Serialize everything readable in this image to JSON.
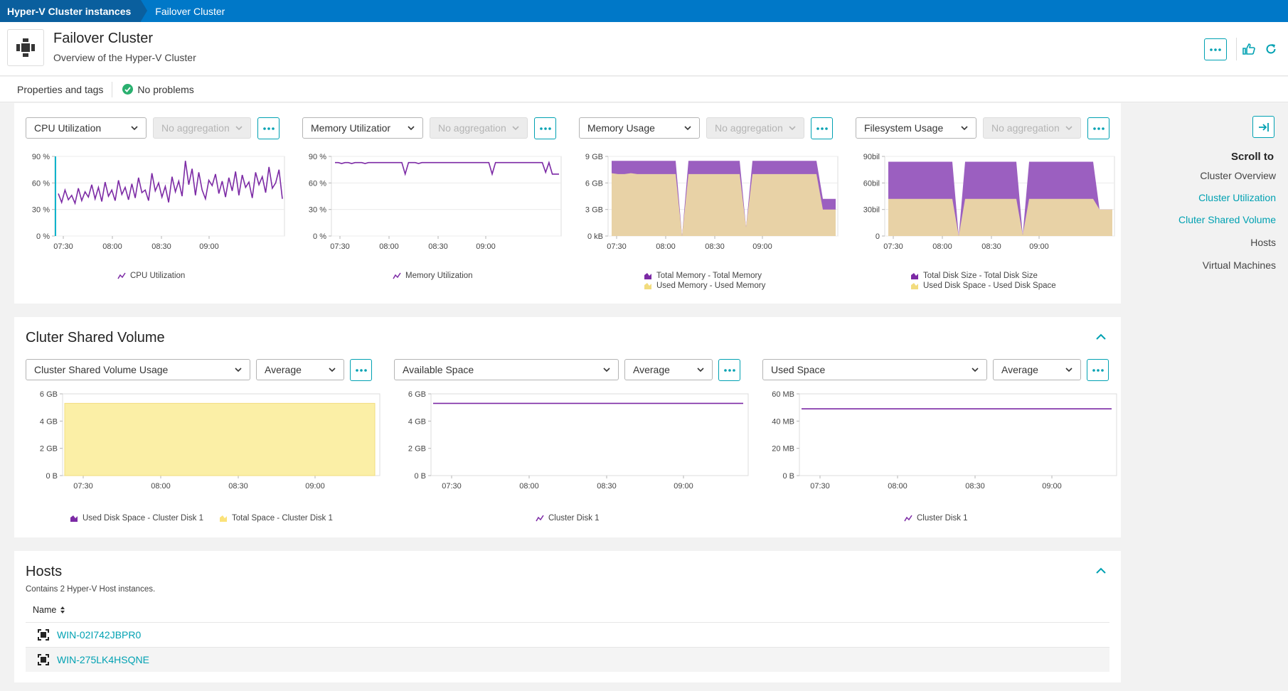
{
  "breadcrumb": {
    "items": [
      "Hyper-V Cluster instances",
      "Failover Cluster"
    ]
  },
  "header": {
    "title": "Failover Cluster",
    "subtitle": "Overview of the Hyper-V Cluster",
    "more_label": "···"
  },
  "properties": {
    "link": "Properties and tags",
    "status": "No problems"
  },
  "colors": {
    "accent": "#00a1b2",
    "breadcrumb_blue": "#0078c8",
    "purple": "#9b5fc0",
    "purple_line": "#7c2aa5",
    "tan": "#e8d2a6",
    "yellow": "#fbefa6",
    "ok_green": "#2ab06f"
  },
  "cluster_utilization": {
    "charts": [
      {
        "metric": "CPU Utilization",
        "aggregation": "No aggregation",
        "legend": [
          "CPU Utilization"
        ]
      },
      {
        "metric": "Memory Utilizatior",
        "aggregation": "No aggregation",
        "legend": [
          "Memory Utilization"
        ]
      },
      {
        "metric": "Memory Usage",
        "aggregation": "No aggregation",
        "legend": [
          "Total Memory - Total Memory",
          "Used Memory - Used Memory"
        ]
      },
      {
        "metric": "Filesystem Usage",
        "aggregation": "No aggregation",
        "legend": [
          "Total Disk Size - Total Disk Size",
          "Used Disk Space - Used Disk Space"
        ]
      }
    ]
  },
  "shared_volume": {
    "title": "Cluter Shared Volume",
    "charts": [
      {
        "metric": "Cluster Shared Volume Usage",
        "aggregation": "Average",
        "legend": [
          "Used Disk Space - Cluster Disk 1",
          "Total Space - Cluster Disk 1"
        ]
      },
      {
        "metric": "Available Space",
        "aggregation": "Average",
        "legend": [
          "Cluster Disk 1"
        ]
      },
      {
        "metric": "Used Space",
        "aggregation": "Average",
        "legend": [
          "Cluster Disk 1"
        ]
      }
    ]
  },
  "hosts": {
    "title": "Hosts",
    "subtitle": "Contains 2 Hyper-V Host instances.",
    "column": "Name",
    "rows": [
      "WIN-02I742JBPR0",
      "WIN-275LK4HSQNE"
    ]
  },
  "right_nav": {
    "title": "Scroll to",
    "items": [
      "Cluster Overview",
      "Cluster Utilization",
      "Cluter Shared Volume",
      "Hosts",
      "Virtual Machines"
    ],
    "active": [
      "Cluster Utilization",
      "Cluter Shared Volume"
    ]
  },
  "chart_data": [
    {
      "type": "line",
      "title": "CPU Utilization",
      "x_ticks": [
        "07:30",
        "08:00",
        "08:30",
        "09:00"
      ],
      "y_ticks": [
        "90 %",
        "60 %",
        "30 %",
        "0 %"
      ],
      "ylim": [
        0,
        90
      ],
      "series": [
        {
          "name": "CPU Utilization",
          "values": [
            48,
            38,
            52,
            41,
            46,
            37,
            54,
            40,
            50,
            44,
            58,
            42,
            55,
            39,
            61,
            45,
            52,
            40,
            63,
            47,
            55,
            41,
            59,
            43,
            66,
            49,
            52,
            40,
            71,
            51,
            60,
            44,
            56,
            38,
            67,
            50,
            62,
            45,
            85,
            58,
            76,
            46,
            72,
            52,
            42,
            63,
            57,
            70,
            48,
            62,
            44,
            66,
            51,
            73,
            46,
            69,
            55,
            61,
            43,
            72,
            58,
            67,
            49,
            78,
            54,
            60,
            75,
            42
          ]
        }
      ],
      "grid": true
    },
    {
      "type": "line",
      "title": "Memory Utilization",
      "x_ticks": [
        "07:30",
        "08:00",
        "08:30",
        "09:00"
      ],
      "y_ticks": [
        "90 %",
        "60 %",
        "30 %",
        "0 %"
      ],
      "ylim": [
        0,
        90
      ],
      "series": [
        {
          "name": "Memory Utilization",
          "values": [
            83,
            83,
            82,
            83,
            83,
            82,
            83,
            83,
            83,
            82,
            83,
            83,
            83,
            83,
            83,
            83,
            83,
            83,
            83,
            83,
            83,
            70,
            83,
            83,
            83,
            82,
            83,
            83,
            83,
            83,
            83,
            83,
            83,
            83,
            83,
            83,
            83,
            83,
            83,
            83,
            83,
            83,
            83,
            83,
            83,
            83,
            83,
            70,
            83,
            83,
            83,
            83,
            83,
            83,
            83,
            83,
            83,
            83,
            83,
            83,
            83,
            83,
            83,
            72,
            83,
            70,
            70,
            70
          ]
        }
      ],
      "grid": true
    },
    {
      "type": "area",
      "title": "Memory Usage",
      "x_ticks": [
        "07:30",
        "08:00",
        "08:30",
        "09:00"
      ],
      "y_ticks": [
        "9 GB",
        "6 GB",
        "3 GB",
        "0 kB"
      ],
      "ylim": [
        0,
        9
      ],
      "series": [
        {
          "name": "Total Memory - Total Memory",
          "values": [
            8.5,
            8.5,
            8.5,
            8.5,
            8.5,
            8.5,
            8.5,
            8.5,
            8.5,
            8.5,
            8.5,
            0,
            8.5,
            8.5,
            8.5,
            8.5,
            8.5,
            8.5,
            8.5,
            8.5,
            8.5,
            1,
            8.5,
            8.5,
            8.5,
            8.5,
            8.5,
            8.5,
            8.5,
            8.5,
            8.5,
            8.5,
            8.5,
            4.2,
            4.2,
            4.2
          ]
        },
        {
          "name": "Used Memory - Used Memory",
          "values": [
            7.1,
            7.0,
            7.0,
            7.1,
            7.0,
            7.0,
            7.0,
            7.0,
            7.0,
            7.0,
            7.0,
            0,
            7.0,
            7.0,
            7.0,
            7.0,
            7.0,
            7.0,
            7.0,
            7.0,
            7.0,
            1,
            7.0,
            7.0,
            7.0,
            7.0,
            7.0,
            7.0,
            7.0,
            7.0,
            7.0,
            7.0,
            7.0,
            3.0,
            3.0,
            3.0
          ]
        }
      ],
      "grid": true
    },
    {
      "type": "area",
      "title": "Filesystem Usage",
      "x_ticks": [
        "07:30",
        "08:00",
        "08:30",
        "09:00"
      ],
      "y_ticks": [
        "90bil",
        "60bil",
        "30bil",
        "0"
      ],
      "ylim": [
        0,
        90
      ],
      "series": [
        {
          "name": "Total Disk Size - Total Disk Size",
          "values": [
            84,
            84,
            84,
            84,
            84,
            84,
            84,
            84,
            84,
            84,
            84,
            0,
            84,
            84,
            84,
            84,
            84,
            84,
            84,
            84,
            84,
            1,
            84,
            84,
            84,
            84,
            84,
            84,
            84,
            84,
            84,
            84,
            84,
            30,
            30,
            30
          ]
        },
        {
          "name": "Used Disk Space - Used Disk Space",
          "values": [
            42,
            42,
            42,
            42,
            42,
            42,
            42,
            42,
            42,
            42,
            42,
            0,
            42,
            42,
            42,
            42,
            42,
            42,
            42,
            42,
            42,
            1,
            42,
            42,
            42,
            42,
            42,
            42,
            42,
            42,
            42,
            42,
            42,
            30,
            30,
            30
          ]
        }
      ],
      "grid": true
    },
    {
      "type": "area",
      "title": "Cluster Shared Volume Usage",
      "x_ticks": [
        "07:30",
        "08:00",
        "08:30",
        "09:00"
      ],
      "y_ticks": [
        "6 GB",
        "4 GB",
        "2 GB",
        "0 B"
      ],
      "ylim": [
        0,
        6
      ],
      "series": [
        {
          "name": "Used Disk Space - Cluster Disk 1",
          "values": [
            0,
            0
          ]
        },
        {
          "name": "Total Space - Cluster Disk 1",
          "values": [
            5.3,
            5.3
          ]
        }
      ],
      "grid": false
    },
    {
      "type": "line",
      "title": "Available Space",
      "x_ticks": [
        "07:30",
        "08:00",
        "08:30",
        "09:00"
      ],
      "y_ticks": [
        "6 GB",
        "4 GB",
        "2 GB",
        "0 B"
      ],
      "ylim": [
        0,
        6
      ],
      "series": [
        {
          "name": "Cluster Disk 1",
          "values": [
            5.3,
            5.3
          ]
        }
      ],
      "grid": false
    },
    {
      "type": "line",
      "title": "Used Space",
      "x_ticks": [
        "07:30",
        "08:00",
        "08:30",
        "09:00"
      ],
      "y_ticks": [
        "60 MB",
        "40 MB",
        "20 MB",
        "0 B"
      ],
      "ylim": [
        0,
        60
      ],
      "series": [
        {
          "name": "Cluster Disk 1",
          "values": [
            49,
            49
          ]
        }
      ],
      "grid": false
    }
  ]
}
